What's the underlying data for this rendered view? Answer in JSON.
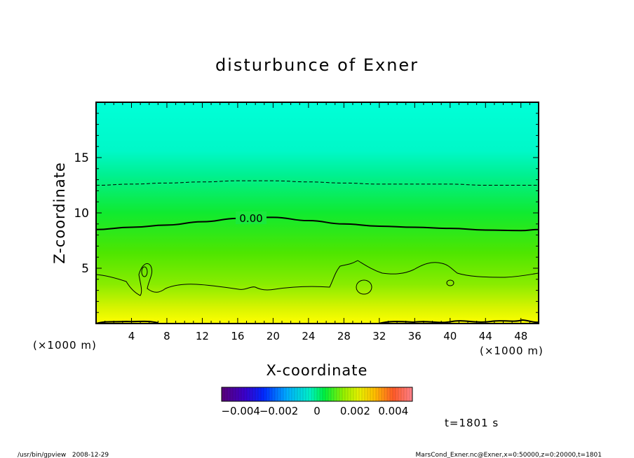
{
  "chart_data": {
    "type": "heatmap",
    "title": "disturbunce of Exner",
    "xlabel": "X-coordinate",
    "ylabel": "Z-coordinate",
    "x_unit_left": "(×1000 m)",
    "x_unit_right": "(×1000 m)",
    "xlim": [
      0,
      50
    ],
    "ylim": [
      0,
      20
    ],
    "x_ticks": [
      4,
      8,
      12,
      16,
      20,
      24,
      28,
      32,
      36,
      40,
      44,
      48
    ],
    "y_ticks": [
      5,
      10,
      15
    ],
    "grid": false,
    "colorbar": {
      "range": [
        -0.005,
        0.005
      ],
      "tick_values": [
        -0.004,
        -0.002,
        0,
        0.002,
        0.004
      ],
      "tick_labels": [
        "−0.004",
        "−0.002",
        "0",
        "0.002",
        "0.004"
      ]
    },
    "contour_label": "0.00",
    "zero_contour": {
      "x": [
        0,
        4,
        8,
        12,
        16,
        20,
        24,
        28,
        32,
        36,
        40,
        44,
        48,
        50
      ],
      "z": [
        8.5,
        8.7,
        8.9,
        9.2,
        9.5,
        9.6,
        9.3,
        9.0,
        8.8,
        8.7,
        8.6,
        8.45,
        8.4,
        8.5
      ]
    },
    "dashed_contour": {
      "x": [
        0,
        4,
        8,
        12,
        16,
        20,
        24,
        28,
        32,
        36,
        40,
        44,
        48,
        50
      ],
      "z": [
        12.5,
        12.6,
        12.7,
        12.8,
        12.9,
        12.9,
        12.8,
        12.7,
        12.6,
        12.6,
        12.6,
        12.5,
        12.5,
        12.5
      ]
    },
    "time_label": "t=1801 s"
  },
  "footer": {
    "left": "/usr/bin/gpview   2008-12-29",
    "right": "MarsCond_Exner.nc@Exner,x=0:50000,z=0:20000,t=1801"
  },
  "colors": {
    "top": "#00ffd8",
    "upper_mid": "#00f080",
    "mid": "#22ee22",
    "lower_mid": "#66ee00",
    "low": "#aaee00",
    "bottom": "#ffff00",
    "frame": "#000000"
  }
}
